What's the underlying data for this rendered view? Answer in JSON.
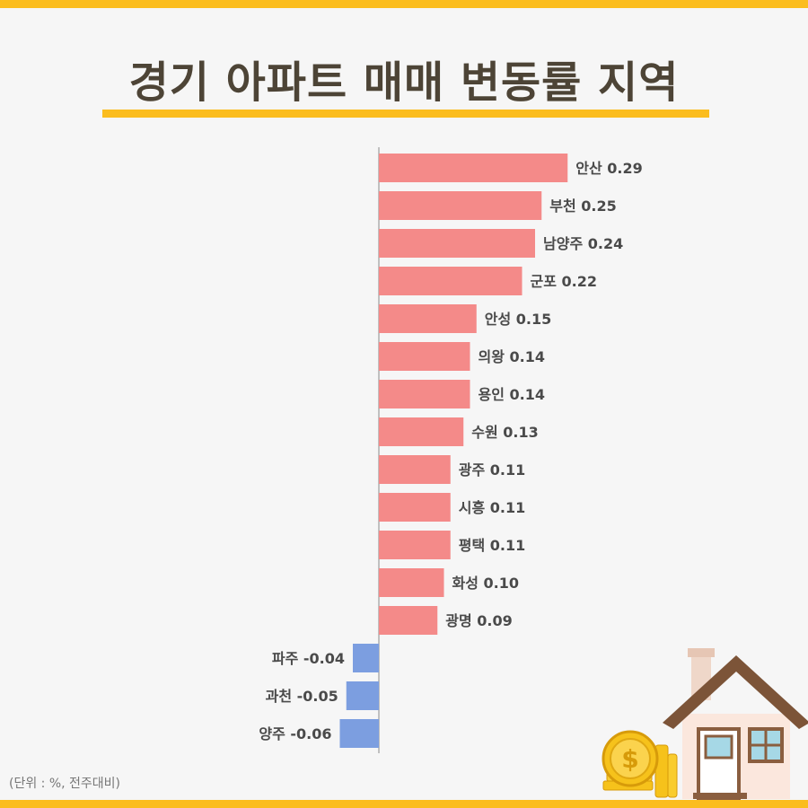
{
  "title": "경기 아파트 매매 변동률 지역",
  "unit_note": "(단위 : %, 전주대비)",
  "colors": {
    "positive": "#f48a89",
    "negative": "#7c9ee0",
    "accent": "#fbbd1e",
    "axis": "#8a8a8a"
  },
  "chart_data": {
    "type": "bar",
    "orientation": "horizontal",
    "title": "경기 아파트 매매 변동률 지역",
    "xlabel": "",
    "ylabel": "",
    "xlim": [
      -0.06,
      0.29
    ],
    "grid": false,
    "categories": [
      "안산",
      "부천",
      "남양주",
      "군포",
      "안성",
      "의왕",
      "용인",
      "수원",
      "광주",
      "시흥",
      "평택",
      "화성",
      "광명",
      "파주",
      "과천",
      "양주"
    ],
    "values": [
      0.29,
      0.25,
      0.24,
      0.22,
      0.15,
      0.14,
      0.14,
      0.13,
      0.11,
      0.11,
      0.11,
      0.1,
      0.09,
      -0.04,
      -0.05,
      -0.06
    ],
    "data_labels": [
      "안산 0.29",
      "부천 0.25",
      "남양주 0.24",
      "군포 0.22",
      "안성 0.15",
      "의왕 0.14",
      "용인 0.14",
      "수원 0.13",
      "광주 0.11",
      "시흥 0.11",
      "평택 0.11",
      "화성 0.10",
      "광명 0.09",
      "파주 -0.04",
      "과천 -0.05",
      "양주 -0.06"
    ]
  },
  "illustration": {
    "icons": [
      "house-icon",
      "coin-icon",
      "coin-stack-icon"
    ],
    "coin_symbol": "$"
  }
}
